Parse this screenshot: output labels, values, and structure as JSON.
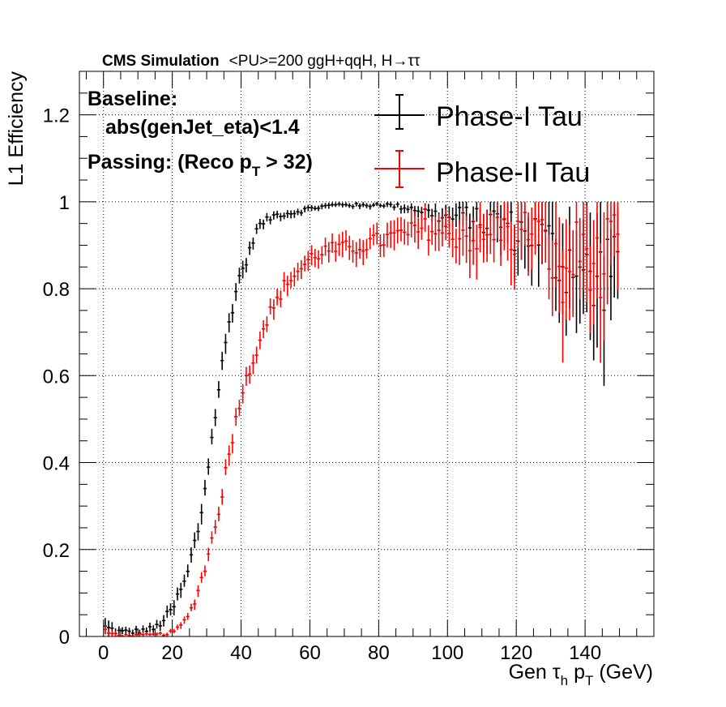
{
  "chart_data": {
    "type": "scatter",
    "title_parts": {
      "cms": "CMS Simulation",
      "rest": "<PU>=200  ggH+qqH, H→ττ"
    },
    "xlabel_parts": {
      "pre": "Gen τ",
      "sub1": "h",
      "mid": " p",
      "sub2": "T",
      "post": " (GeV)"
    },
    "ylabel": "L1 Efficiency",
    "xlim": [
      -7,
      160
    ],
    "ylim": [
      0,
      1.3
    ],
    "x_ticks": [
      0,
      20,
      40,
      60,
      80,
      100,
      120,
      140
    ],
    "x_tick_labels": [
      "0",
      "20",
      "40",
      "60",
      "80",
      "100",
      "120",
      "140"
    ],
    "y_ticks": [
      0,
      0.2,
      0.4,
      0.6,
      0.8,
      1,
      1.2
    ],
    "y_tick_labels": [
      "0",
      "0.2",
      "0.4",
      "0.6",
      "0.8",
      "1",
      "1.2"
    ],
    "grid": true,
    "annotations": {
      "baseline_label": "Baseline:",
      "baseline_cut": "abs(genJet_eta)<1.4",
      "passing_pre": "Passing: (Reco p",
      "passing_sub": "T",
      "passing_post": " > 32)"
    },
    "legend_position": "top-right",
    "bin_width": 1,
    "series": [
      {
        "name": "Phase-I Tau",
        "color": "#000000",
        "points": [
          [
            0,
            0.02,
            0.02
          ],
          [
            5,
            0.01,
            0.008
          ],
          [
            10,
            0.012,
            0.008
          ],
          [
            15,
            0.018,
            0.01
          ],
          [
            20,
            0.06,
            0.015
          ],
          [
            22,
            0.1,
            0.015
          ],
          [
            24,
            0.13,
            0.015
          ],
          [
            26,
            0.2,
            0.018
          ],
          [
            28,
            0.26,
            0.02
          ],
          [
            30,
            0.37,
            0.02
          ],
          [
            32,
            0.48,
            0.02
          ],
          [
            34,
            0.6,
            0.02
          ],
          [
            36,
            0.7,
            0.02
          ],
          [
            38,
            0.78,
            0.02
          ],
          [
            40,
            0.84,
            0.018
          ],
          [
            42,
            0.87,
            0.015
          ],
          [
            44,
            0.93,
            0.012
          ],
          [
            46,
            0.95,
            0.01
          ],
          [
            50,
            0.97,
            0.008
          ],
          [
            55,
            0.975,
            0.008
          ],
          [
            60,
            0.985,
            0.006
          ],
          [
            65,
            0.99,
            0.006
          ],
          [
            70,
            0.995,
            0.005
          ],
          [
            75,
            0.99,
            0.006
          ],
          [
            80,
            0.995,
            0.005
          ],
          [
            85,
            0.99,
            0.007
          ],
          [
            90,
            0.985,
            0.01
          ],
          [
            95,
            0.975,
            0.015
          ],
          [
            100,
            0.96,
            0.025
          ],
          [
            105,
            0.97,
            0.03
          ],
          [
            110,
            0.95,
            0.04
          ],
          [
            115,
            0.96,
            0.05
          ],
          [
            120,
            0.93,
            0.06
          ],
          [
            125,
            0.93,
            0.07
          ],
          [
            130,
            0.9,
            0.08
          ],
          [
            133,
            0.85,
            0.1
          ],
          [
            137,
            0.88,
            0.1
          ],
          [
            140,
            0.82,
            0.12
          ],
          [
            143,
            0.8,
            0.15
          ],
          [
            146,
            0.85,
            0.12
          ],
          [
            149,
            0.9,
            0.1
          ]
        ]
      },
      {
        "name": "Phase-II Tau",
        "color": "#ff0000",
        "points": [
          [
            0,
            0.01,
            0.01
          ],
          [
            5,
            0.003,
            0.003
          ],
          [
            10,
            0.003,
            0.003
          ],
          [
            15,
            0.004,
            0.004
          ],
          [
            18,
            0.006,
            0.004
          ],
          [
            20,
            0.01,
            0.005
          ],
          [
            22,
            0.02,
            0.006
          ],
          [
            24,
            0.04,
            0.008
          ],
          [
            26,
            0.07,
            0.01
          ],
          [
            28,
            0.12,
            0.012
          ],
          [
            30,
            0.17,
            0.014
          ],
          [
            32,
            0.24,
            0.016
          ],
          [
            34,
            0.31,
            0.018
          ],
          [
            36,
            0.4,
            0.02
          ],
          [
            38,
            0.48,
            0.02
          ],
          [
            40,
            0.56,
            0.02
          ],
          [
            42,
            0.6,
            0.02
          ],
          [
            44,
            0.65,
            0.02
          ],
          [
            46,
            0.7,
            0.02
          ],
          [
            48,
            0.74,
            0.02
          ],
          [
            50,
            0.76,
            0.02
          ],
          [
            52,
            0.8,
            0.02
          ],
          [
            55,
            0.83,
            0.02
          ],
          [
            58,
            0.85,
            0.02
          ],
          [
            60,
            0.87,
            0.02
          ],
          [
            65,
            0.89,
            0.02
          ],
          [
            70,
            0.89,
            0.025
          ],
          [
            75,
            0.9,
            0.025
          ],
          [
            80,
            0.91,
            0.025
          ],
          [
            85,
            0.92,
            0.03
          ],
          [
            90,
            0.93,
            0.03
          ],
          [
            95,
            0.94,
            0.035
          ],
          [
            100,
            0.92,
            0.04
          ],
          [
            105,
            0.93,
            0.045
          ],
          [
            110,
            0.9,
            0.06
          ],
          [
            115,
            0.94,
            0.05
          ],
          [
            120,
            0.92,
            0.07
          ],
          [
            125,
            0.95,
            0.06
          ],
          [
            130,
            0.88,
            0.08
          ],
          [
            133,
            0.8,
            0.12
          ],
          [
            137,
            0.88,
            0.1
          ],
          [
            140,
            0.9,
            0.1
          ],
          [
            143,
            0.85,
            0.1
          ],
          [
            146,
            0.84,
            0.15
          ],
          [
            149,
            0.9,
            0.1
          ]
        ]
      }
    ]
  }
}
